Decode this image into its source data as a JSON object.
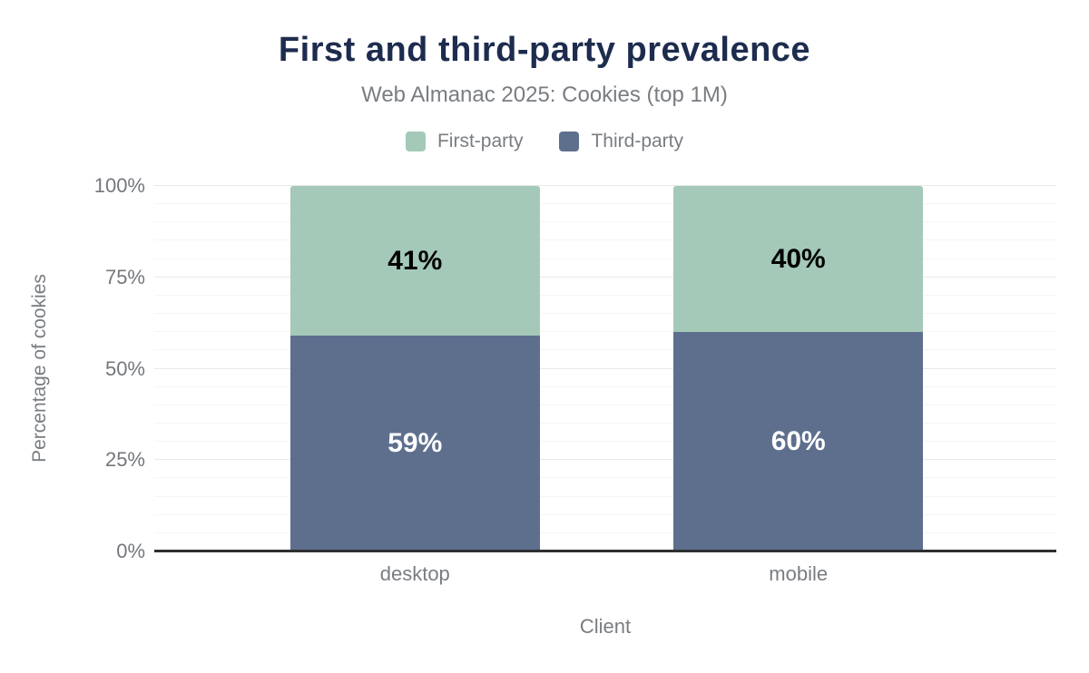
{
  "chart_data": {
    "type": "bar",
    "stacked": true,
    "title": "First and third-party prevalence",
    "subtitle": "Web Almanac 2025: Cookies (top 1M)",
    "xlabel": "Client",
    "ylabel": "Percentage of cookies",
    "categories": [
      "desktop",
      "mobile"
    ],
    "series": [
      {
        "name": "First-party",
        "color": "#a4c9b8",
        "values": [
          41,
          40
        ],
        "labels": [
          "41%",
          "40%"
        ],
        "label_color": "#000000"
      },
      {
        "name": "Third-party",
        "color": "#5e6f8e",
        "values": [
          59,
          60
        ],
        "labels": [
          "59%",
          "60%"
        ],
        "label_color": "#ffffff"
      }
    ],
    "stack_order_bottom_to_top": [
      "Third-party",
      "First-party"
    ],
    "ylim": [
      0,
      100
    ],
    "yticks": [
      {
        "value": 0,
        "label": "0%"
      },
      {
        "value": 25,
        "label": "25%"
      },
      {
        "value": 50,
        "label": "50%"
      },
      {
        "value": 75,
        "label": "75%"
      },
      {
        "value": 100,
        "label": "100%"
      }
    ],
    "grid": {
      "minor_step": 5,
      "major_step": 25,
      "minor_color": "#f5f5f5",
      "major_color": "#e8e8e8"
    },
    "legend_position": "top",
    "colors": {
      "title": "#1d2c4e",
      "muted_text": "#797d82",
      "tick_text": "#74777d",
      "axis_line": "#2e2f31",
      "background": "#ffffff"
    }
  }
}
